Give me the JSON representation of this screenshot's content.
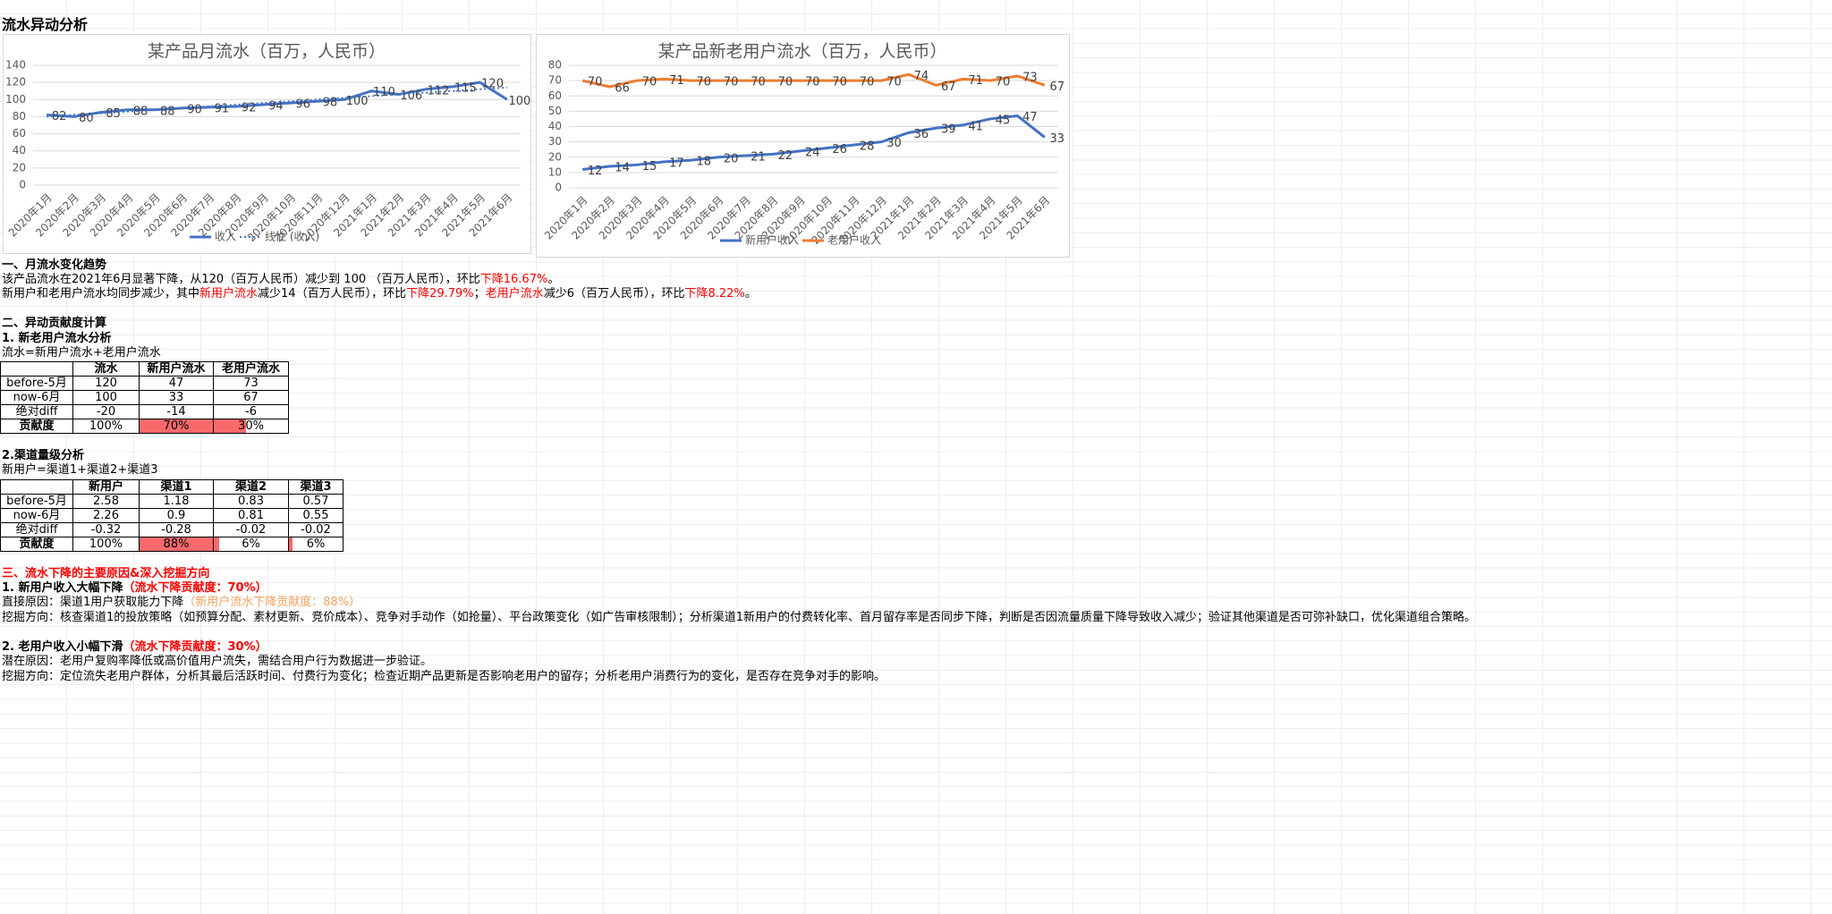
{
  "chart_data": [
    {
      "type": "line",
      "title": "某产品月流水（百万，人民币）",
      "categories": [
        "2020年1月",
        "2020年2月",
        "2020年3月",
        "2020年4月",
        "2020年5月",
        "2020年6月",
        "2020年7月",
        "2020年8月",
        "2020年9月",
        "2020年10月",
        "2020年11月",
        "2020年12月",
        "2021年1月",
        "2021年2月",
        "2021年3月",
        "2021年4月",
        "2021年5月",
        "2021年6月"
      ],
      "series": [
        {
          "name": "收入",
          "color": "#4472c4",
          "style": "solid",
          "data_labels": true,
          "values": [
            82,
            80,
            85,
            88,
            88,
            90,
            91,
            92,
            94,
            96,
            98,
            100,
            110,
            106,
            112,
            115,
            120,
            100
          ]
        },
        {
          "name": "线性 (收入)",
          "color": "#4472c4",
          "style": "dotted",
          "data_labels": false,
          "values": [
            80,
            82,
            84,
            86,
            88,
            90,
            92,
            94,
            96,
            98,
            100,
            102,
            104,
            106,
            108,
            110,
            112,
            114
          ]
        }
      ],
      "ylim": [
        0,
        140
      ],
      "yticks": [
        0,
        20,
        40,
        60,
        80,
        100,
        120,
        140
      ],
      "grid": true,
      "legend": "bottom"
    },
    {
      "type": "line",
      "title": "某产品新老用户流水（百万，人民币）",
      "categories": [
        "2020年1月",
        "2020年2月",
        "2020年3月",
        "2020年4月",
        "2020年5月",
        "2020年6月",
        "2020年7月",
        "2020年8月",
        "2020年9月",
        "2020年10月",
        "2020年11月",
        "2020年12月",
        "2021年1月",
        "2021年2月",
        "2021年3月",
        "2021年4月",
        "2021年5月",
        "2021年6月"
      ],
      "series": [
        {
          "name": "新用户收入",
          "color": "#4472c4",
          "style": "solid",
          "data_labels": true,
          "values": [
            12,
            14,
            15,
            17,
            18,
            20,
            21,
            22,
            24,
            26,
            28,
            30,
            36,
            39,
            41,
            45,
            47,
            33
          ]
        },
        {
          "name": "老用户收入",
          "color": "#ed7d31",
          "style": "solid",
          "data_labels": true,
          "values": [
            70,
            66,
            70,
            71,
            70,
            70,
            70,
            70,
            70,
            70,
            70,
            70,
            74,
            67,
            71,
            70,
            73,
            67
          ]
        }
      ],
      "ylim": [
        0,
        80
      ],
      "yticks": [
        0,
        10,
        20,
        30,
        40,
        50,
        60,
        70,
        80
      ],
      "grid": true,
      "legend": "bottom"
    }
  ],
  "document": {
    "title": "流水异动分析",
    "trend": {
      "heading": "一、月流水变化趋势",
      "line1": [
        "该产品流水在2021年6月显著下降，从120（百万人民币）减少到 100 （百万人民币），环比",
        "下降16.67%",
        "。"
      ],
      "line2": [
        "新用户和老用户流水均同步减少，其中",
        "新用户流水",
        "减少14（百万人民币），环比",
        "下降29.79%",
        "；",
        "老用户流水",
        "减少6（百万人民币），环比",
        "下降8.22%",
        "。"
      ]
    },
    "contribution": {
      "heading": "二、异动贡献度计算",
      "part1": {
        "heading": "1. 新老用户流水分析",
        "formula": "流水=新用户流水+老用户流水",
        "table": {
          "header": [
            null,
            "流水",
            "新用户流水",
            "老用户流水"
          ],
          "rows": [
            [
              "before-5月",
              "120",
              "47",
              "73"
            ],
            [
              "now-6月",
              "100",
              "33",
              "67"
            ],
            [
              "绝对diff",
              "-20",
              "-14",
              "-6"
            ],
            [
              "贡献度",
              "100%",
              {
                "value": 70,
                "label": "70%"
              },
              {
                "value": 30,
                "label": "30%"
              }
            ]
          ]
        }
      },
      "part2": {
        "heading": "2.渠道量级分析",
        "formula": "新用户=渠道1+渠道2+渠道3",
        "table": {
          "header": [
            null,
            "新用户",
            "渠道1",
            "渠道2",
            "渠道3"
          ],
          "rows": [
            [
              "before-5月",
              "2.58",
              "1.18",
              "0.83",
              "0.57"
            ],
            [
              "now-6月",
              "2.26",
              "0.9",
              "0.81",
              "0.55"
            ],
            [
              "绝对diff",
              "-0.32",
              "-0.28",
              "-0.02",
              "-0.02"
            ],
            [
              "贡献度",
              "100%",
              {
                "value": 88,
                "label": "88%"
              },
              {
                "value": 6,
                "label": "6%"
              },
              {
                "value": 6,
                "label": "6%"
              }
            ]
          ]
        }
      }
    },
    "causes": {
      "heading": "三、流水下降的主要原因&深入挖掘方向",
      "item1": {
        "heading": [
          "1. 新用户收入大幅下降",
          "（流水下降贡献度：70%）"
        ],
        "direct": [
          "直接原因：渠道1用户获取能力下降",
          "（新用户流水下降贡献度：88%）"
        ],
        "direction": "挖掘方向：核查渠道1的投放策略（如预算分配、素材更新、竞价成本）、竞争对手动作（如抢量）、平台政策变化（如广告审核限制）；分析渠道1新用户的付费转化率、首月留存率是否同步下降，判断是否因流量质量下降导致收入减少；验证其他渠道是否可弥补缺口，优化渠道组合策略。"
      },
      "item2": {
        "heading": [
          "2. 老用户收入小幅下滑",
          "（流水下降贡献度：30%）"
        ],
        "potential": "潜在原因：老用户复购率降低或高价值用户流失，需结合用户行为数据进一步验证。",
        "direction": "挖掘方向：定位流失老用户群体，分析其最后活跃时间、付费行为变化；检查近期产品更新是否影响老用户的留存；分析老用户消费行为的变化，是否存在竞争对手的影响。"
      }
    }
  }
}
